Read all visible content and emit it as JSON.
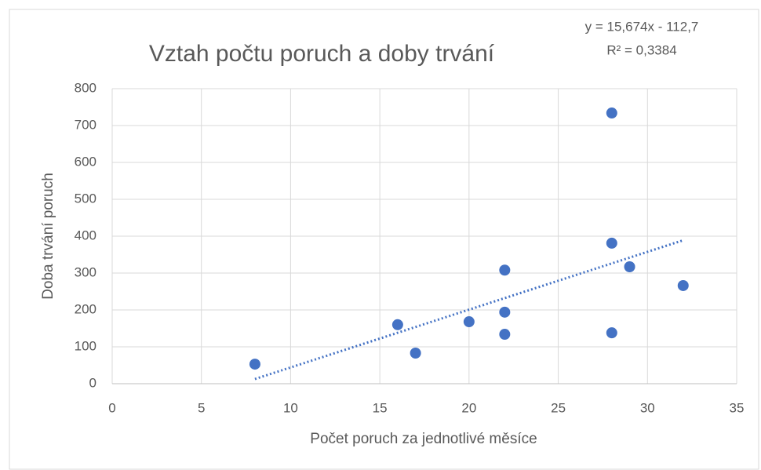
{
  "chart_data": {
    "type": "scatter",
    "title": "Vztah počtu poruch a doby trvání",
    "xlabel": "Počet poruch za jednotlivé měsíce",
    "ylabel": "Doba trvání poruch",
    "x": [
      8,
      16,
      17,
      20,
      22,
      22,
      22,
      28,
      28,
      28,
      29,
      32
    ],
    "values": [
      53,
      160,
      83,
      168,
      308,
      194,
      134,
      734,
      381,
      138,
      317,
      266
    ],
    "color": "#4472c4",
    "xlim": [
      0,
      35
    ],
    "xticks": [
      0,
      5,
      10,
      15,
      20,
      25,
      30,
      35
    ],
    "ylim": [
      0,
      800
    ],
    "yticks": [
      0,
      100,
      200,
      300,
      400,
      500,
      600,
      700,
      800
    ],
    "grid": true,
    "trendline": {
      "slope": 15.674,
      "intercept": -112.7,
      "label": "y = 15,674x - 112,7",
      "r2_label": "R² = 0,3384"
    }
  }
}
